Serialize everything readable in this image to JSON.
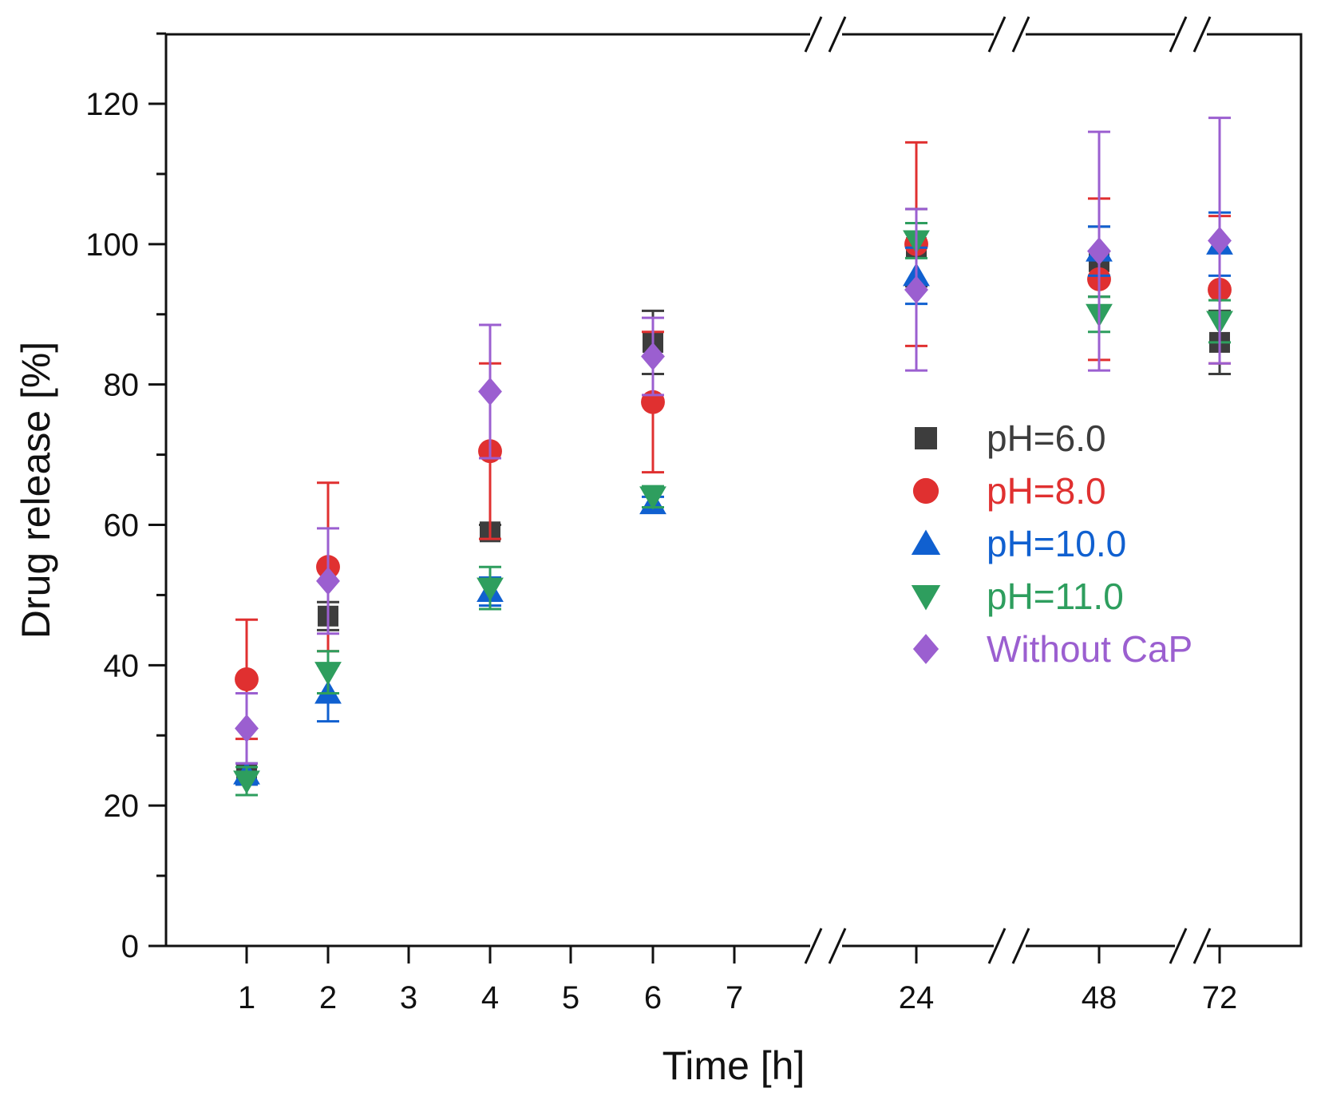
{
  "chart_data": {
    "type": "scatter",
    "title": "",
    "xlabel": "Time [h]",
    "ylabel": "Drug release [%]",
    "ylim": [
      0,
      130
    ],
    "yticks": [
      0,
      20,
      40,
      60,
      80,
      100,
      120
    ],
    "x_categories": [
      "1",
      "2",
      "3",
      "4",
      "5",
      "6",
      "7",
      "24",
      "48",
      "72"
    ],
    "x_axis_breaks": [
      "7–24",
      "24–48",
      "48–72"
    ],
    "legend_position": "center-right",
    "series": [
      {
        "name": "pH=6.0",
        "marker": "square",
        "color": "#3d3d3d",
        "x": [
          "1",
          "2",
          "4",
          "6",
          "24",
          "48",
          "72"
        ],
        "values": [
          24.5,
          47,
          59,
          86,
          99.5,
          97.5,
          86
        ],
        "error": [
          1.5,
          2,
          1,
          4.5,
          5.5,
          5,
          4.5
        ]
      },
      {
        "name": "pH=8.0",
        "marker": "circle",
        "color": "#e03030",
        "x": [
          "1",
          "2",
          "4",
          "6",
          "24",
          "48",
          "72"
        ],
        "values": [
          38,
          54,
          70.5,
          77.5,
          100,
          95,
          93.5
        ],
        "error": [
          8.5,
          12,
          12.5,
          10,
          14.5,
          11.5,
          10.5
        ]
      },
      {
        "name": "pH=10.0",
        "marker": "triangle-up",
        "color": "#1060d0",
        "x": [
          "1",
          "2",
          "4",
          "6",
          "24",
          "48",
          "72"
        ],
        "values": [
          24.5,
          36,
          50.5,
          63,
          95.5,
          99,
          100
        ],
        "error": [
          1.5,
          4,
          2,
          1,
          4,
          3.5,
          4.5
        ]
      },
      {
        "name": "pH=11.0",
        "marker": "triangle-down",
        "color": "#2e9e5e",
        "x": [
          "1",
          "2",
          "4",
          "6",
          "24",
          "48",
          "72"
        ],
        "values": [
          23.5,
          39,
          51,
          64,
          100.5,
          90,
          89
        ],
        "error": [
          2,
          3,
          3,
          1.5,
          2.5,
          2.5,
          3
        ]
      },
      {
        "name": "Without CaP",
        "marker": "diamond",
        "color": "#9b5fd0",
        "x": [
          "1",
          "2",
          "4",
          "6",
          "24",
          "48",
          "72"
        ],
        "values": [
          31,
          52,
          79,
          84,
          93.5,
          99,
          100.5
        ],
        "error": [
          5,
          7.5,
          9.5,
          5.5,
          11.5,
          17,
          17.5
        ]
      }
    ]
  }
}
